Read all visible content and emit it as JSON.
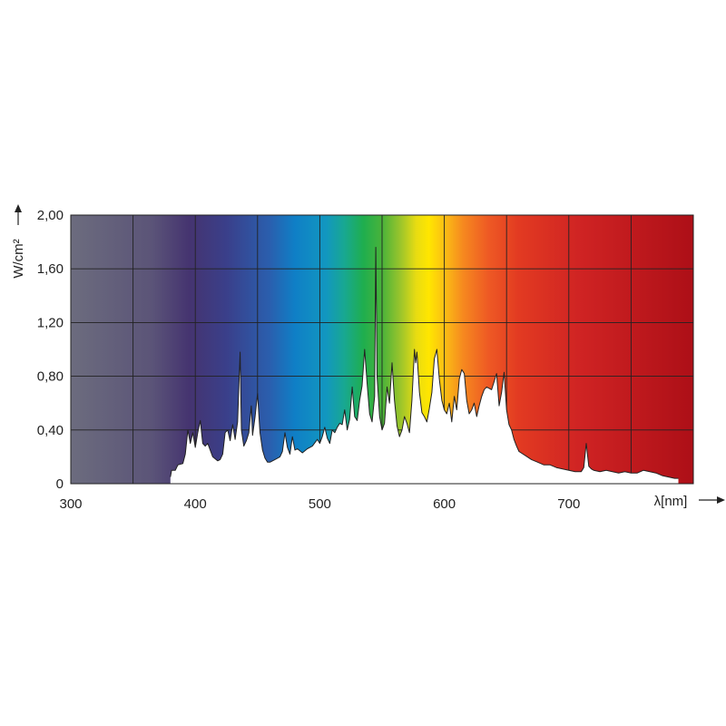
{
  "chart_data": {
    "type": "area",
    "title": "",
    "xlabel": "λ[nm]",
    "ylabel": "W/cm²",
    "xlim": [
      300,
      800
    ],
    "ylim": [
      0,
      2.0
    ],
    "x_ticks": [
      "300",
      "400",
      "500",
      "600",
      "700"
    ],
    "y_ticks": [
      "0",
      "0,40",
      "0,80",
      "1,20",
      "1,60",
      "2,00"
    ],
    "grid": true,
    "background": "visible-light color spectrum",
    "colors": {
      "grid": "#222222",
      "fill_under_curve": "#ffffff",
      "line": "#222222"
    },
    "series": [
      {
        "x": [
          380,
          381,
          384,
          386,
          390,
          392,
          394,
          396,
          398,
          400,
          402,
          404,
          406,
          408,
          410,
          414,
          418,
          420,
          422,
          424,
          426,
          428,
          430,
          432,
          434,
          436,
          437,
          439,
          441,
          443,
          445,
          446,
          448,
          450,
          452,
          454,
          456,
          458,
          460,
          464,
          468,
          470,
          472,
          474,
          476,
          478,
          480,
          482,
          486,
          490,
          494,
          498,
          500,
          502,
          504,
          506,
          508,
          510,
          512,
          514,
          516,
          518,
          520,
          522,
          524,
          526,
          528,
          530,
          532,
          534,
          536,
          538,
          540,
          542,
          544,
          545,
          546,
          548,
          550,
          552,
          554,
          556,
          558,
          560,
          562,
          564,
          566,
          568,
          570,
          572,
          574,
          576,
          577,
          578,
          580,
          582,
          584,
          586,
          588,
          590,
          592,
          594,
          596,
          598,
          600,
          602,
          604,
          606,
          608,
          610,
          612,
          614,
          616,
          618,
          620,
          622,
          624,
          626,
          628,
          630,
          632,
          634,
          636,
          638,
          640,
          642,
          644,
          646,
          648,
          650,
          652,
          654,
          656,
          658,
          660,
          665,
          670,
          675,
          680,
          685,
          690,
          695,
          700,
          705,
          710,
          712,
          714,
          716,
          718,
          720,
          725,
          730,
          735,
          740,
          745,
          750,
          755,
          760,
          765,
          770,
          775,
          780,
          785,
          788
        ],
        "y": [
          0.05,
          0.1,
          0.1,
          0.14,
          0.15,
          0.22,
          0.4,
          0.3,
          0.38,
          0.27,
          0.38,
          0.47,
          0.3,
          0.28,
          0.3,
          0.2,
          0.17,
          0.18,
          0.22,
          0.38,
          0.4,
          0.32,
          0.44,
          0.33,
          0.46,
          0.98,
          0.4,
          0.28,
          0.32,
          0.38,
          0.58,
          0.36,
          0.5,
          0.67,
          0.38,
          0.25,
          0.19,
          0.16,
          0.16,
          0.18,
          0.2,
          0.24,
          0.38,
          0.27,
          0.22,
          0.35,
          0.25,
          0.26,
          0.23,
          0.26,
          0.28,
          0.33,
          0.3,
          0.35,
          0.42,
          0.34,
          0.3,
          0.4,
          0.38,
          0.42,
          0.45,
          0.44,
          0.55,
          0.4,
          0.48,
          0.72,
          0.5,
          0.47,
          0.62,
          0.73,
          1.0,
          0.75,
          0.52,
          0.46,
          0.65,
          1.76,
          0.8,
          0.5,
          0.4,
          0.45,
          0.72,
          0.6,
          0.9,
          0.62,
          0.43,
          0.35,
          0.4,
          0.5,
          0.45,
          0.38,
          0.62,
          1.0,
          0.9,
          0.98,
          0.68,
          0.53,
          0.5,
          0.46,
          0.56,
          0.68,
          0.93,
          1.0,
          0.78,
          0.62,
          0.55,
          0.52,
          0.6,
          0.46,
          0.65,
          0.55,
          0.78,
          0.85,
          0.82,
          0.62,
          0.52,
          0.55,
          0.6,
          0.5,
          0.58,
          0.65,
          0.7,
          0.72,
          0.71,
          0.7,
          0.76,
          0.82,
          0.58,
          0.68,
          0.83,
          0.55,
          0.44,
          0.4,
          0.33,
          0.28,
          0.24,
          0.21,
          0.18,
          0.16,
          0.14,
          0.14,
          0.12,
          0.11,
          0.1,
          0.09,
          0.09,
          0.12,
          0.3,
          0.13,
          0.11,
          0.1,
          0.09,
          0.1,
          0.09,
          0.08,
          0.09,
          0.08,
          0.08,
          0.1,
          0.09,
          0.08,
          0.06,
          0.05,
          0.04,
          0.04
        ]
      }
    ]
  }
}
